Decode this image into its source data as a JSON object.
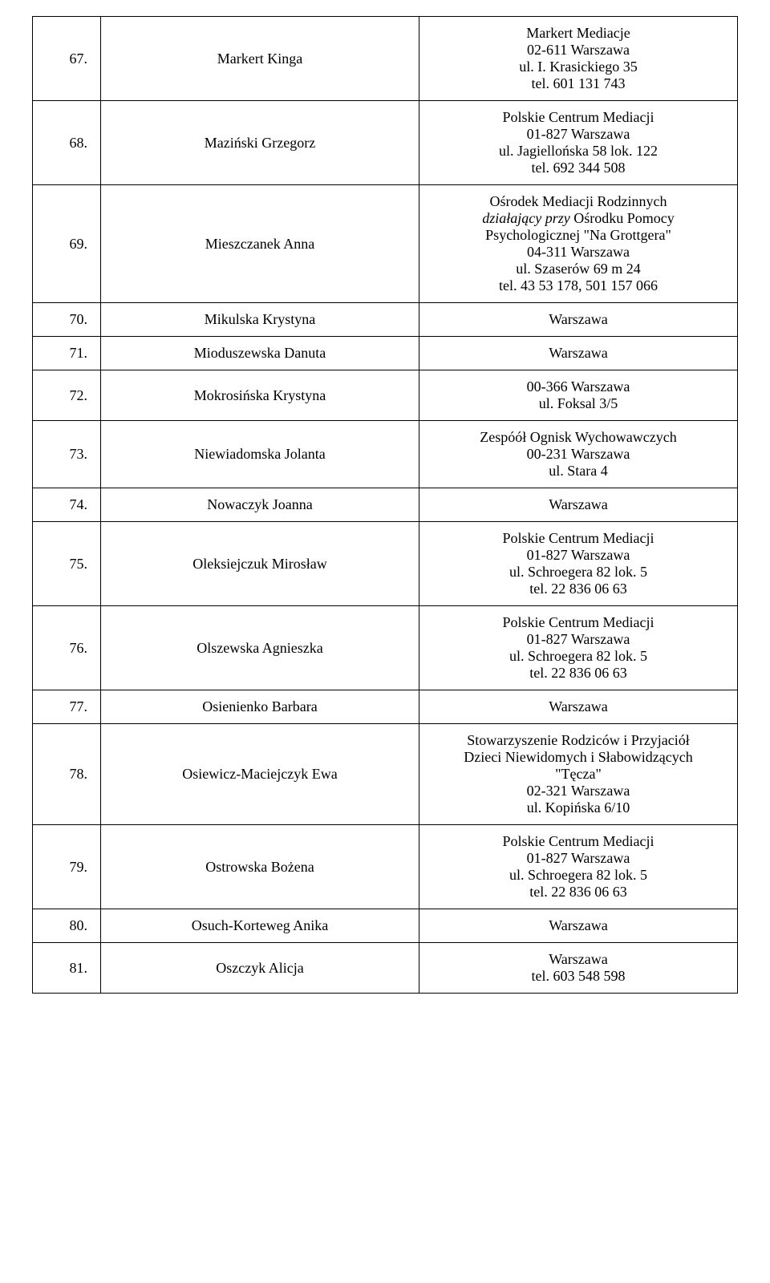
{
  "table": {
    "col_widths": {
      "num": 60,
      "name": 380
    },
    "border_color": "#000000",
    "background_color": "#ffffff",
    "font_family": "Times New Roman",
    "font_size_pt": 14,
    "rows": [
      {
        "num": "67.",
        "name": "Markert Kinga",
        "info": [
          {
            "text": "Markert Mediacje"
          },
          {
            "text": "02-611 Warszawa"
          },
          {
            "text": "ul. I. Krasickiego 35"
          },
          {
            "text": "tel. 601 131 743"
          }
        ]
      },
      {
        "num": "68.",
        "name": "Maziński Grzegorz",
        "info": [
          {
            "text": "Polskie Centrum Mediacji"
          },
          {
            "text": "01-827 Warszawa"
          },
          {
            "text": "ul. Jagiellońska 58 lok. 122"
          },
          {
            "text": "tel. 692 344 508"
          }
        ]
      },
      {
        "num": "69.",
        "name": "Mieszczanek Anna",
        "info": [
          {
            "text": "Ośrodek Mediacji Rodzinnych"
          },
          {
            "text_prefix_italic": "działający przy ",
            "text_rest": "Ośrodku Pomocy"
          },
          {
            "text": "Psychologicznej \"Na Grottgera\""
          },
          {
            "text": "04-311 Warszawa"
          },
          {
            "text": "ul. Szaserów 69 m 24"
          },
          {
            "text": "tel. 43 53 178, 501 157 066"
          }
        ]
      },
      {
        "num": "70.",
        "name": "Mikulska Krystyna",
        "info": [
          {
            "text": "Warszawa"
          }
        ]
      },
      {
        "num": "71.",
        "name": "Mioduszewska Danuta",
        "info": [
          {
            "text": "Warszawa"
          }
        ]
      },
      {
        "num": "72.",
        "name": "Mokrosińska Krystyna",
        "info": [
          {
            "text": "00-366 Warszawa"
          },
          {
            "text": "ul. Foksal 3/5"
          }
        ]
      },
      {
        "num": "73.",
        "name": "Niewiadomska Jolanta",
        "info": [
          {
            "text": "Zespóół Ognisk Wychowawczych"
          },
          {
            "text": "00-231 Warszawa"
          },
          {
            "text": "ul. Stara 4"
          }
        ]
      },
      {
        "num": "74.",
        "name": "Nowaczyk Joanna",
        "info": [
          {
            "text": "Warszawa"
          }
        ]
      },
      {
        "num": "75.",
        "name": "Oleksiejczuk Mirosław",
        "info": [
          {
            "text": "Polskie Centrum Mediacji"
          },
          {
            "text": "01-827 Warszawa"
          },
          {
            "text": "ul. Schroegera 82 lok. 5"
          },
          {
            "text": "tel. 22 836 06 63"
          }
        ]
      },
      {
        "num": "76.",
        "name": "Olszewska Agnieszka",
        "info": [
          {
            "text": "Polskie Centrum Mediacji"
          },
          {
            "text": "01-827 Warszawa"
          },
          {
            "text": "ul. Schroegera 82 lok. 5"
          },
          {
            "text": "tel. 22 836 06 63"
          }
        ]
      },
      {
        "num": "77.",
        "name": "Osienienko Barbara",
        "info": [
          {
            "text": "Warszawa"
          }
        ]
      },
      {
        "num": "78.",
        "name": "Osiewicz-Maciejczyk Ewa",
        "info": [
          {
            "text": "Stowarzyszenie Rodziców i Przyjaciół"
          },
          {
            "text": "Dzieci Niewidomych i Słabowidzących"
          },
          {
            "text": "\"Tęcza\""
          },
          {
            "text": "02-321 Warszawa"
          },
          {
            "text": "ul. Kopińska 6/10"
          }
        ]
      },
      {
        "num": "79.",
        "name": "Ostrowska Bożena",
        "info": [
          {
            "text": "Polskie Centrum Mediacji"
          },
          {
            "text": "01-827 Warszawa"
          },
          {
            "text": "ul. Schroegera 82 lok. 5"
          },
          {
            "text": "tel. 22 836 06 63"
          }
        ]
      },
      {
        "num": "80.",
        "name": "Osuch-Korteweg Anika",
        "info": [
          {
            "text": "Warszawa"
          }
        ]
      },
      {
        "num": "81.",
        "name": "Oszczyk Alicja",
        "info": [
          {
            "text": "Warszawa"
          },
          {
            "text": "tel. 603 548 598"
          }
        ]
      }
    ]
  }
}
